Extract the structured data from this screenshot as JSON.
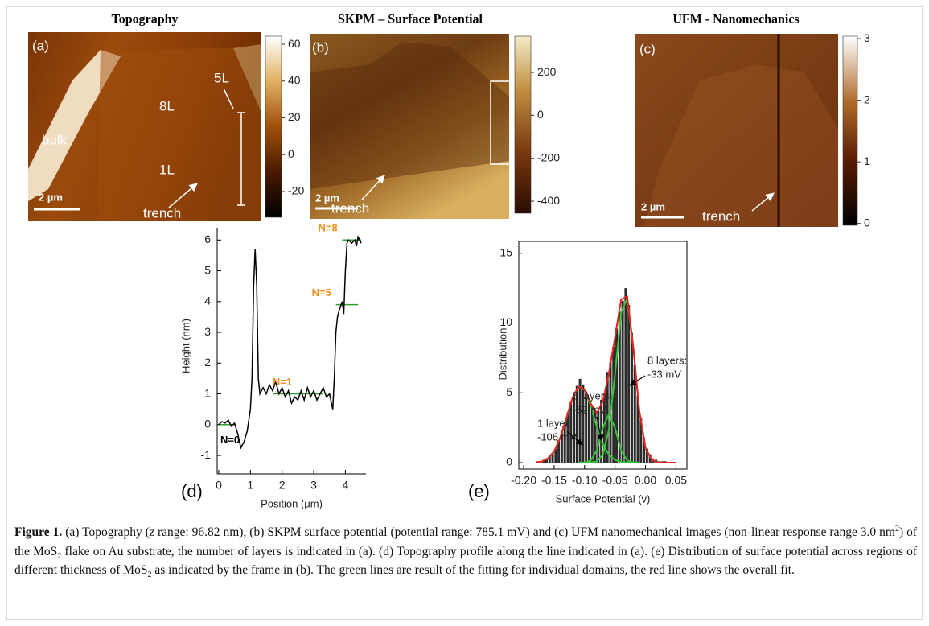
{
  "figure": {
    "panels": [
      {
        "title": "Topography",
        "letter": "(a)",
        "labels": [
          "bulk",
          "8L",
          "5L",
          "1L",
          "trench",
          "2 µm"
        ],
        "colorbar": {
          "clim": [
            -34,
            64.4
          ],
          "ticks": [
            60,
            40,
            20,
            0,
            -20
          ]
        }
      },
      {
        "title": "SKPM – Surface Potential",
        "letter": "(b)",
        "labels": [
          "trench",
          "2 µm"
        ],
        "colorbar": {
          "clim": [
            -456,
            369
          ],
          "ticks": [
            200,
            0,
            -200,
            -400
          ]
        }
      },
      {
        "title": "UFM - Nanomechanics",
        "letter": "(c)",
        "labels": [
          "trench",
          "2 µm"
        ],
        "colorbar": {
          "clim": [
            -0.03,
            3.04
          ],
          "ticks": [
            3,
            2,
            1,
            0
          ]
        }
      }
    ]
  },
  "chart_data": [
    {
      "type": "line",
      "letter": "(d)",
      "x_label": "Position (μm)",
      "y_label": "Height (nm)",
      "xlim": [
        -0.05,
        4.65
      ],
      "ylim": [
        -1.6,
        6.4
      ],
      "xticks": [
        0,
        1,
        2,
        3,
        4
      ],
      "yticks": [
        -1,
        0,
        1,
        2,
        3,
        4,
        5,
        6
      ],
      "series": [
        {
          "color": "#000000",
          "x": [
            0,
            0.1,
            0.2,
            0.3,
            0.4,
            0.5,
            0.6,
            0.7,
            0.8,
            0.9,
            1.0,
            1.05,
            1.1,
            1.15,
            1.2,
            1.25,
            1.3,
            1.4,
            1.5,
            1.6,
            1.7,
            1.8,
            1.9,
            2.0,
            2.1,
            2.2,
            2.3,
            2.4,
            2.5,
            2.6,
            2.7,
            2.8,
            2.9,
            3.0,
            3.1,
            3.2,
            3.3,
            3.4,
            3.5,
            3.6,
            3.65,
            3.7,
            3.75,
            3.8,
            3.9,
            3.95,
            4.0,
            4.05,
            4.1,
            4.2,
            4.3,
            4.35,
            4.4,
            4.5
          ],
          "values": [
            0,
            0.1,
            0.05,
            0.15,
            -0.05,
            0.05,
            -0.3,
            -0.75,
            -0.55,
            -0.2,
            0.5,
            1.5,
            4.5,
            5.7,
            4.5,
            1.5,
            1.0,
            1.2,
            1.0,
            1.3,
            1.1,
            1.4,
            1.0,
            1.2,
            0.9,
            1.1,
            0.7,
            0.9,
            0.8,
            1.1,
            0.8,
            1.2,
            0.9,
            1.1,
            0.8,
            1.0,
            1.2,
            0.9,
            1.0,
            0.5,
            1.5,
            3.0,
            3.5,
            3.7,
            4.0,
            3.6,
            5.0,
            5.9,
            6.0,
            5.9,
            6.0,
            5.8,
            6.1,
            5.9
          ]
        }
      ],
      "levels": [
        {
          "label": "N=0",
          "value": 0,
          "x": [
            0,
            0.55
          ],
          "color": "#2ca02c",
          "label_color": "#000000"
        },
        {
          "label": "N=1",
          "value": 1,
          "x": [
            1.7,
            3.3
          ],
          "color": "#2ca02c",
          "label_color": "#f0901e"
        },
        {
          "label": "N=5",
          "value": 3.9,
          "x": [
            3.7,
            4.4
          ],
          "color": "#2ca02c",
          "label_color": "#f0901e"
        },
        {
          "label": "N=8",
          "value": 6,
          "x": [
            3.9,
            4.5
          ],
          "color": "#2ca02c",
          "label_color": "#f0901e"
        }
      ]
    },
    {
      "type": "histogram",
      "letter": "(e)",
      "x_label": "Surface Potential (v)",
      "y_label": "Distribution",
      "xlim": [
        -0.208,
        0.068
      ],
      "ylim": [
        -0.46,
        15.85
      ],
      "xticks": [
        {
          "value": -0.2,
          "label": "-0.20"
        },
        -0.15,
        {
          "value": -0.1,
          "label": "-0.10"
        },
        -0.05,
        {
          "value": 0,
          "label": "0.00"
        },
        0.05
      ],
      "yticks": [
        0,
        5,
        10,
        15
      ],
      "color": "#2b2b2b",
      "bins": [
        -0.18,
        -0.175,
        -0.17,
        -0.165,
        -0.16,
        -0.155,
        -0.15,
        -0.145,
        -0.14,
        -0.135,
        -0.13,
        -0.125,
        -0.12,
        -0.115,
        -0.11,
        -0.105,
        -0.1,
        -0.095,
        -0.09,
        -0.085,
        -0.08,
        -0.075,
        -0.07,
        -0.065,
        -0.06,
        -0.055,
        -0.05,
        -0.045,
        -0.04,
        -0.035,
        -0.03,
        -0.025,
        -0.02,
        -0.015,
        -0.01,
        -0.005,
        0,
        0.005,
        0.01,
        0.015,
        0.02,
        0.025,
        0.03,
        0.035,
        0.04,
        0.045
      ],
      "values": [
        0.1,
        0.1,
        0.2,
        0.3,
        0.5,
        0.7,
        1.0,
        1.6,
        2.2,
        2.8,
        3.6,
        4.4,
        5.0,
        5.5,
        6.0,
        5.6,
        5.1,
        4.6,
        4.0,
        3.6,
        3.7,
        4.5,
        5.0,
        6.5,
        7.2,
        8.3,
        9.6,
        10.8,
        11.6,
        12.5,
        11.3,
        9.3,
        7.0,
        4.8,
        3.2,
        1.8,
        1.0,
        0.6,
        0.3,
        0.2,
        0.1,
        0.1,
        0.1,
        0.05,
        0.05
      ],
      "series": [
        {
          "color": "#35c435",
          "x": [
            -0.18,
            -0.17,
            -0.16,
            -0.15,
            -0.14,
            -0.13,
            -0.12,
            -0.11,
            -0.1,
            -0.09,
            -0.08,
            -0.07,
            -0.06,
            -0.05,
            -0.04,
            -0.03,
            -0.02
          ],
          "values": [
            0.02,
            0.09,
            0.3,
            0.81,
            1.79,
            3.18,
            4.62,
            5.45,
            5.23,
            4.08,
            2.59,
            1.34,
            0.56,
            0.19,
            0.05,
            0.01,
            0
          ]
        },
        {
          "color": "#35c435",
          "x": [
            -0.11,
            -0.1,
            -0.09,
            -0.08,
            -0.07,
            -0.06,
            -0.05,
            -0.04,
            -0.03,
            -0.02,
            -0.01
          ],
          "values": [
            0,
            0.01,
            0.15,
            0.87,
            2.48,
            3.5,
            2.48,
            0.87,
            0.15,
            0.01,
            0
          ]
        },
        {
          "color": "#35c435",
          "x": [
            -0.11,
            -0.1,
            -0.09,
            -0.08,
            -0.07,
            -0.06,
            -0.05,
            -0.04,
            -0.03,
            -0.02,
            -0.01,
            0,
            0.01,
            0.02,
            0.03,
            0.04
          ],
          "values": [
            0,
            0,
            0.01,
            0.09,
            0.57,
            2.37,
            6.31,
            10.76,
            11.76,
            8.24,
            3.69,
            1.07,
            0.2,
            0.02,
            0,
            0
          ]
        },
        {
          "color": "#e8231f",
          "x": [
            -0.18,
            -0.17,
            -0.16,
            -0.15,
            -0.14,
            -0.13,
            -0.12,
            -0.11,
            -0.1,
            -0.09,
            -0.08,
            -0.07,
            -0.06,
            -0.05,
            -0.04,
            -0.03,
            -0.02,
            -0.01,
            0,
            0.01,
            0.02,
            0.03,
            0.04,
            0.05
          ],
          "values": [
            0.02,
            0.09,
            0.3,
            0.81,
            1.79,
            3.18,
            4.62,
            5.45,
            5.24,
            4.24,
            3.55,
            4.39,
            6.43,
            8.98,
            11.68,
            11.92,
            8.24,
            3.69,
            1.07,
            0.2,
            0.02,
            0,
            0,
            0
          ]
        }
      ],
      "annotations": [
        {
          "lines": [
            "1 layer:",
            "-106 mV"
          ]
        },
        {
          "lines": [
            "5 layers:",
            "-62 mV"
          ]
        },
        {
          "lines": [
            "8 layers:",
            "-33 mV"
          ]
        }
      ]
    }
  ],
  "caption": [
    "Figure 1.",
    " (a) Topography (",
    "z",
    " range: 96.82 nm), (b) SKPM surface potential (potential range: 785.1 mV) and (c) UFM nanomechanical images (non-linear response range 3.0 nm",
    "2",
    ") of the MoS",
    "2",
    " flake on Au substrate, the number of layers is indicated in (a). (d) Topography profile along the line indicated in (a). (e) Distribution of surface potential across regions of different thickness of MoS",
    "2",
    " as indicated by the frame in (b). The green lines are result of the fitting for individual domains, the red line shows the overall fit."
  ]
}
